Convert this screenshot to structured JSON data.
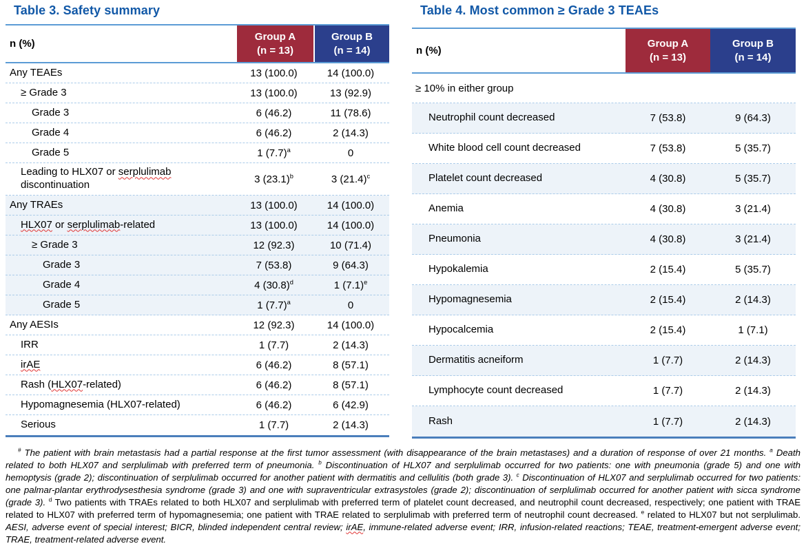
{
  "colors": {
    "title_blue": "#1158A7",
    "group_a_red": "#9E2B3C",
    "group_b_navy": "#2B3F8C",
    "header_rule_blue": "#5B9BD5",
    "table_bottom_rule_blue": "#4A7EBB",
    "row_separator_blue": "#AACBE9",
    "row_shade_blue": "#EDF3F9",
    "misspell_red": "#E03131"
  },
  "table3": {
    "title": "Table 3. Safety summary",
    "header": {
      "row_label": "n (%)",
      "group_a": [
        "Group A",
        "(n = 13)"
      ],
      "group_b": [
        "Group B",
        "(n = 14)"
      ]
    },
    "rows": [
      {
        "indent": 0,
        "shade": false,
        "label": [
          {
            "t": "Any TEAEs"
          }
        ],
        "a": "13 (100.0)",
        "b": "14 (100.0)"
      },
      {
        "indent": 1,
        "shade": false,
        "label": [
          {
            "t": "≥ Grade 3"
          }
        ],
        "a": "13 (100.0)",
        "b": "13 (92.9)"
      },
      {
        "indent": 2,
        "shade": false,
        "label": [
          {
            "t": "Grade 3"
          }
        ],
        "a": "6 (46.2)",
        "b": "11 (78.6)"
      },
      {
        "indent": 2,
        "shade": false,
        "label": [
          {
            "t": "Grade 4"
          }
        ],
        "a": "6 (46.2)",
        "b": "2 (14.3)"
      },
      {
        "indent": 2,
        "shade": false,
        "label": [
          {
            "t": "Grade 5"
          }
        ],
        "a": "1 (7.7)",
        "a_sup": "a",
        "b": "0"
      },
      {
        "indent": 1,
        "shade": false,
        "tall": true,
        "label": [
          {
            "t": "Leading to HLX07 or "
          },
          {
            "t": "serplulimab",
            "sq": true
          },
          {
            "t": " discontinuation"
          }
        ],
        "a": "3 (23.1)",
        "a_sup": "b",
        "b": "3 (21.4)",
        "b_sup": "c"
      },
      {
        "indent": 0,
        "shade": true,
        "label": [
          {
            "t": "Any TRAEs"
          }
        ],
        "a": "13 (100.0)",
        "b": "14 (100.0)"
      },
      {
        "indent": 1,
        "shade": true,
        "label": [
          {
            "t": "HLX07",
            "sq": true
          },
          {
            "t": " or "
          },
          {
            "t": "serplulimab",
            "sq": true
          },
          {
            "t": "-related"
          }
        ],
        "a": "13 (100.0)",
        "b": "14 (100.0)"
      },
      {
        "indent": 2,
        "shade": true,
        "label": [
          {
            "t": "≥ Grade 3"
          }
        ],
        "a": "12 (92.3)",
        "b": "10 (71.4)"
      },
      {
        "indent": 3,
        "shade": true,
        "label": [
          {
            "t": "Grade 3"
          }
        ],
        "a": "7 (53.8)",
        "b": "9 (64.3)"
      },
      {
        "indent": 3,
        "shade": true,
        "label": [
          {
            "t": "Grade 4"
          }
        ],
        "a": "4 (30.8)",
        "a_sup": "d",
        "b": "1 (7.1)",
        "b_sup": "e"
      },
      {
        "indent": 3,
        "shade": true,
        "label": [
          {
            "t": "Grade 5"
          }
        ],
        "a": "1 (7.7)",
        "a_sup": "a",
        "b": "0"
      },
      {
        "indent": 0,
        "shade": false,
        "label": [
          {
            "t": "Any AESIs"
          }
        ],
        "a": "12 (92.3)",
        "b": "14 (100.0)"
      },
      {
        "indent": 1,
        "shade": false,
        "label": [
          {
            "t": "IRR"
          }
        ],
        "a": "1 (7.7)",
        "b": "2 (14.3)"
      },
      {
        "indent": 1,
        "shade": false,
        "label": [
          {
            "t": "irAE",
            "sq": true
          }
        ],
        "a": "6 (46.2)",
        "b": "8 (57.1)"
      },
      {
        "indent": 1,
        "shade": false,
        "label": [
          {
            "t": "Rash ("
          },
          {
            "t": "HLX07",
            "sq": true
          },
          {
            "t": "-related)"
          }
        ],
        "a": "6 (46.2)",
        "b": "8 (57.1)"
      },
      {
        "indent": 1,
        "shade": false,
        "label": [
          {
            "t": "Hypomagnesemia (HLX07-related)"
          }
        ],
        "a": "6 (46.2)",
        "b": "6 (42.9)"
      },
      {
        "indent": 1,
        "shade": false,
        "label": [
          {
            "t": "Serious"
          }
        ],
        "a": "1 (7.7)",
        "b": "2 (14.3)"
      }
    ]
  },
  "table4": {
    "title": "Table 4. Most common ≥ Grade 3 TEAEs",
    "header": {
      "row_label": "n (%)",
      "group_a": [
        "Group A",
        "(n = 13)"
      ],
      "group_b": [
        "Group B",
        "(n = 14)"
      ]
    },
    "subheader": "≥ 10% in either group",
    "rows": [
      {
        "shade": true,
        "label": "Neutrophil count decreased",
        "a": "7 (53.8)",
        "b": "9 (64.3)"
      },
      {
        "shade": false,
        "label": "White blood cell count decreased",
        "a": "7 (53.8)",
        "b": "5 (35.7)"
      },
      {
        "shade": true,
        "label": "Platelet count decreased",
        "a": "4 (30.8)",
        "b": "5 (35.7)"
      },
      {
        "shade": false,
        "label": "Anemia",
        "a": "4 (30.8)",
        "b": "3 (21.4)"
      },
      {
        "shade": true,
        "label": "Pneumonia",
        "a": "4 (30.8)",
        "b": "3 (21.4)"
      },
      {
        "shade": false,
        "label": "Hypokalemia",
        "a": "2 (15.4)",
        "b": "5 (35.7)"
      },
      {
        "shade": true,
        "label": "Hypomagnesemia",
        "a": "2 (15.4)",
        "b": "2 (14.3)"
      },
      {
        "shade": false,
        "label": "Hypocalcemia",
        "a": "2 (15.4)",
        "b": "1 (7.1)"
      },
      {
        "shade": true,
        "label": "Dermatitis acneiform",
        "a": "1 (7.7)",
        "b": "2 (14.3)"
      },
      {
        "shade": false,
        "label": "Lymphocyte count decreased",
        "a": "1 (7.7)",
        "b": "2 (14.3)"
      },
      {
        "shade": true,
        "label": "Rash",
        "a": "1 (7.7)",
        "b": "2 (14.3)"
      }
    ]
  },
  "footnote": {
    "segments": [
      {
        "t": "#",
        "sup": true,
        "italic": true
      },
      {
        "t": " The patient with brain metastasis had a partial response at the first tumor assessment (with disappearance of the brain metastases) and a duration of response of over 21 months. ",
        "italic": true
      },
      {
        "t": "a",
        "sup": true,
        "italic": true
      },
      {
        "t": " Death related to both HLX07 and serplulimab with preferred term of pneumonia. ",
        "italic": true
      },
      {
        "t": "b",
        "sup": true,
        "italic": true
      },
      {
        "t": " Discontinuation of HLX07 and serplulimab occurred for two patients: one with pneumonia (grade 5) and one with hemoptysis (grade 2); discontinuation of serplulimab occurred for another patient with dermatitis and cellulitis (both grade 3). ",
        "italic": true
      },
      {
        "t": "c",
        "sup": true,
        "italic": true
      },
      {
        "t": " Discontinuation of HLX07 and serplulimab occurred for two patients: one palmar-plantar erythrodysesthesia syndrome (grade 3) and one with supraventricular extrasystoles (grade 2); discontinuation of serplulimab occurred for another patient with sicca syndrome (grade 3). ",
        "italic": true
      },
      {
        "t": "d",
        "sup": true,
        "italic": false
      },
      {
        "t": " Two patients with TRAEs related to both HLX07 and serplulimab with preferred term of platelet count decreased, and neutrophil count decreased, respectively; one patient with TRAE related to HLX07 with preferred term of hypomagnesemia; one patient with TRAE related to serplulimab with preferred term of neutrophil count decreased. ",
        "italic": false
      },
      {
        "t": "e",
        "sup": true,
        "italic": false
      },
      {
        "t": " related to HLX07 but not serplulimab. ",
        "italic": false
      },
      {
        "t": "AESI, adverse event of special interest; BICR, blinded independent central review; ",
        "italic": true
      },
      {
        "t": "irAE",
        "italic": true,
        "sq": true
      },
      {
        "t": ", immune-related adverse event; IRR, infusion-related reactions; TEAE, treatment-emergent adverse event; TRAE, treatment-related adverse event.",
        "italic": true
      }
    ]
  }
}
